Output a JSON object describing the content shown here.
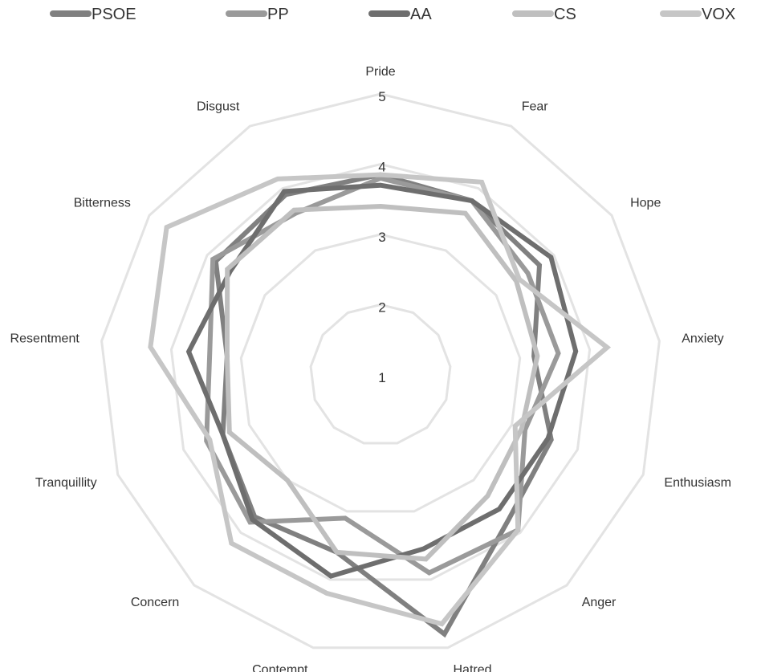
{
  "chart_data": {
    "type": "radar",
    "title": "",
    "categories": [
      "Pride",
      "Fear",
      "Hope",
      "Anxiety",
      "Enthusiasm",
      "Anger",
      "Hatred",
      "Contempt",
      "Concern",
      "Tranquillity",
      "Resentment",
      "Bitterness",
      "Disgust"
    ],
    "rlim": [
      1,
      5
    ],
    "ticks": [
      "1",
      "2",
      "3",
      "4",
      "5"
    ],
    "grid": true,
    "legend_position": "top",
    "series": [
      {
        "name": "PSOE",
        "color": "#808080",
        "values": [
          3.85,
          3.8,
          3.75,
          3.2,
          3.6,
          3.75,
          4.8,
          3.6,
          3.7,
          3.4,
          3.2,
          3.85,
          3.9
        ]
      },
      {
        "name": "PP",
        "color": "#9a9a9a",
        "values": [
          3.8,
          3.8,
          3.55,
          3.55,
          3.2,
          3.95,
          3.9,
          3.1,
          3.8,
          3.65,
          3.45,
          3.9,
          3.6
        ]
      },
      {
        "name": "AA",
        "color": "#6e6e6e",
        "values": [
          3.7,
          3.8,
          3.95,
          3.8,
          3.55,
          3.55,
          3.55,
          3.95,
          3.75,
          3.4,
          3.75,
          3.6,
          3.95
        ]
      },
      {
        "name": "CS",
        "color": "#bfbfbf",
        "values": [
          3.4,
          3.6,
          3.35,
          3.25,
          3.15,
          3.3,
          3.7,
          3.6,
          3.0,
          3.3,
          3.2,
          3.65,
          3.65
        ]
      },
      {
        "name": "VOX",
        "color": "#c6c6c6",
        "values": [
          3.85,
          4.1,
          3.4,
          4.25,
          3.05,
          3.95,
          4.65,
          4.2,
          4.2,
          3.6,
          4.3,
          4.7,
          4.15
        ]
      }
    ]
  }
}
